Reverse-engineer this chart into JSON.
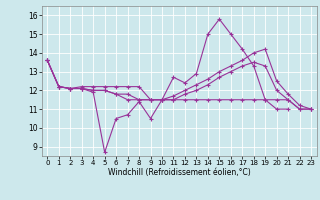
{
  "xlabel": "Windchill (Refroidissement éolien,°C)",
  "background_color": "#cde8ec",
  "line_color": "#993399",
  "xlim": [
    -0.5,
    23.5
  ],
  "ylim": [
    8.5,
    16.5
  ],
  "yticks": [
    9,
    10,
    11,
    12,
    13,
    14,
    15,
    16
  ],
  "xticks": [
    0,
    1,
    2,
    3,
    4,
    5,
    6,
    7,
    8,
    9,
    10,
    11,
    12,
    13,
    14,
    15,
    16,
    17,
    18,
    19,
    20,
    21,
    22,
    23
  ],
  "series": [
    [
      13.6,
      12.2,
      12.1,
      12.1,
      11.9,
      8.7,
      10.5,
      10.7,
      11.4,
      10.5,
      11.5,
      12.7,
      12.4,
      12.9,
      15.0,
      15.8,
      15.0,
      14.2,
      13.3,
      11.5,
      11.0,
      11.0,
      null,
      null
    ],
    [
      13.6,
      12.2,
      12.1,
      12.1,
      12.0,
      12.0,
      11.8,
      11.8,
      11.5,
      11.5,
      11.5,
      11.7,
      12.0,
      12.3,
      12.6,
      13.0,
      13.3,
      13.6,
      14.0,
      14.2,
      12.5,
      11.8,
      11.2,
      11.0
    ],
    [
      13.6,
      12.2,
      12.1,
      12.1,
      12.0,
      12.0,
      11.8,
      11.5,
      11.5,
      11.5,
      11.5,
      11.5,
      11.8,
      12.0,
      12.3,
      12.7,
      13.0,
      13.3,
      13.5,
      13.3,
      12.0,
      11.5,
      11.0,
      11.0
    ],
    [
      13.6,
      12.2,
      12.1,
      12.2,
      12.2,
      12.2,
      12.2,
      12.2,
      12.2,
      11.5,
      11.5,
      11.5,
      11.5,
      11.5,
      11.5,
      11.5,
      11.5,
      11.5,
      11.5,
      11.5,
      11.5,
      11.5,
      11.0,
      11.0
    ]
  ]
}
